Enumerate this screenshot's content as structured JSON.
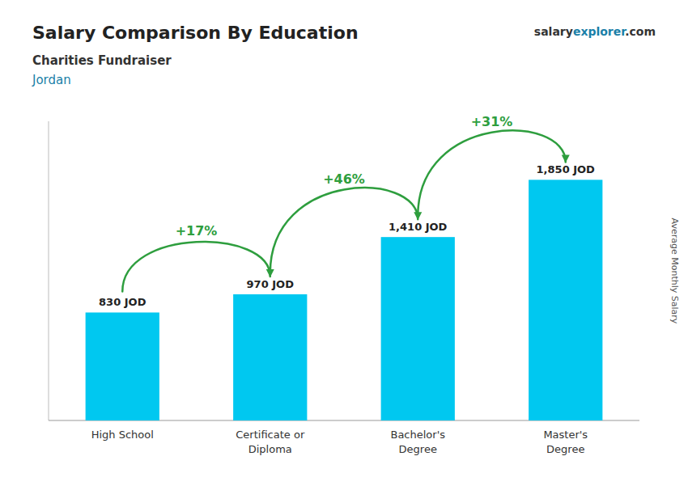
{
  "chart_data": {
    "type": "bar",
    "title": "Salary Comparison By Education",
    "subtitle": [
      "Charities Fundraiser",
      "Jordan"
    ],
    "source": [
      "salary",
      "explorer",
      ".com"
    ],
    "ylabel": "Average Monthly Salary",
    "categories": [
      "High School",
      "Certificate or\nDiploma",
      "Bachelor's\nDegree",
      "Master's\nDegree"
    ],
    "values": [
      830,
      970,
      1410,
      1850
    ],
    "value_labels": [
      "830 JOD",
      "970 JOD",
      "1,410 JOD",
      "1,850 JOD"
    ],
    "data_labels": true,
    "annotations": [
      "+17%",
      "+46%",
      "+31%"
    ],
    "color": "#00c8f0",
    "ylim": [
      0,
      2300
    ],
    "tick_labels": "x",
    "grid": false
  }
}
